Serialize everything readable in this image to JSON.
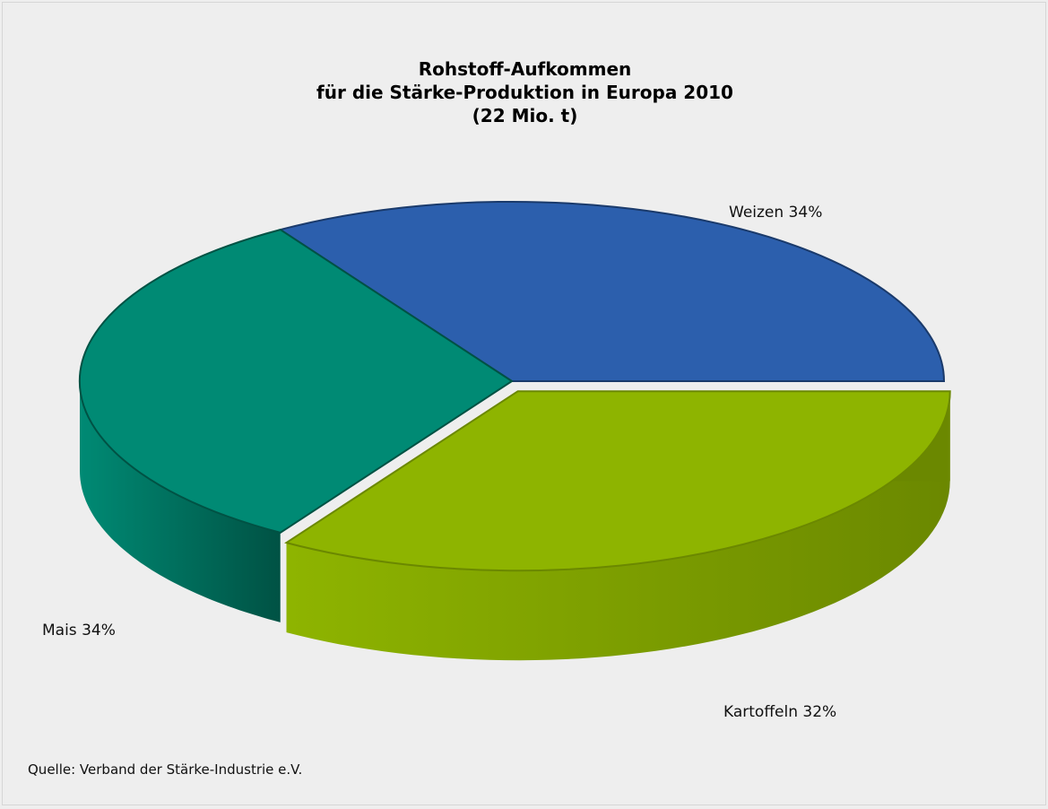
{
  "chart_data": {
    "type": "pie",
    "title_lines": [
      "Rohstoff-Aufkommen",
      "für die Stärke-Produktion in Europa 2010",
      "(22 Mio. t)"
    ],
    "slices": [
      {
        "key": "weizen",
        "name": "Weizen",
        "value": 34,
        "label": "Weizen 34%",
        "color": "#2c5fad",
        "side_color": "#1a3a6b",
        "exploded": false
      },
      {
        "key": "kartoffeln",
        "name": "Kartoffeln",
        "value": 32,
        "label": "Kartoffeln 32%",
        "color": "#008a74",
        "side_color": "#005244",
        "exploded": false
      },
      {
        "key": "mais",
        "name": "Mais",
        "value": 34,
        "label": "Mais 34%",
        "color": "#8eb400",
        "side_color": "#6b8800",
        "exploded": true
      }
    ],
    "source": "Quelle: Verband der Stärke-Industrie e.V."
  },
  "colors": {
    "background": "#eeeeee"
  }
}
